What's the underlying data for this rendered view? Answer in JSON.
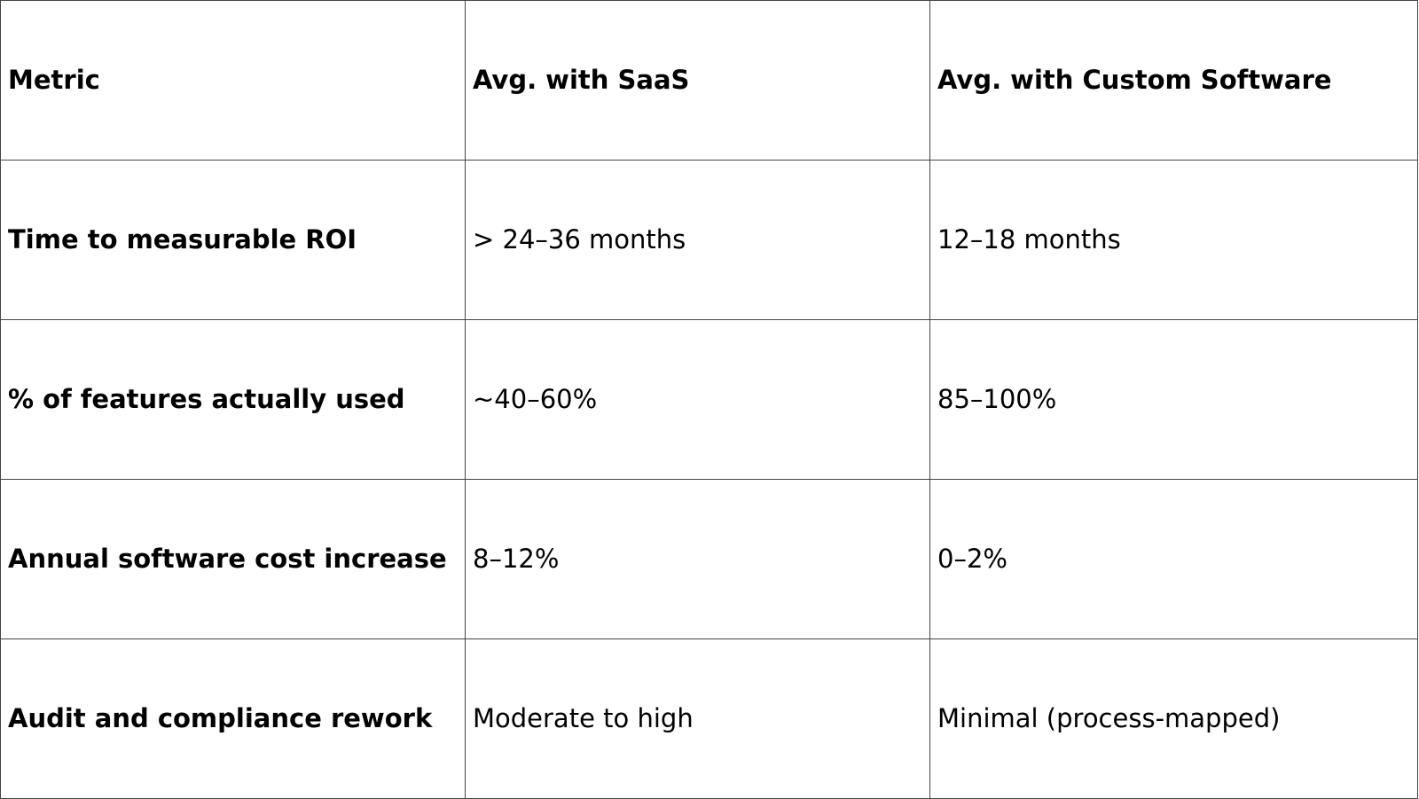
{
  "table": {
    "headers": [
      "Metric",
      "Avg. with SaaS",
      "Avg. with Custom Software"
    ],
    "rows": [
      {
        "metric": "Time to measurable ROI",
        "saas": "> 24–36 months",
        "custom": "12–18 months"
      },
      {
        "metric": "% of features actually used",
        "saas": "~40–60%",
        "custom": "85–100%"
      },
      {
        "metric": "Annual software cost increase",
        "saas": "8–12%",
        "custom": "0–2%"
      },
      {
        "metric": "Audit and compliance rework",
        "saas": "Moderate to high",
        "custom": "Minimal (process-mapped)"
      }
    ]
  }
}
